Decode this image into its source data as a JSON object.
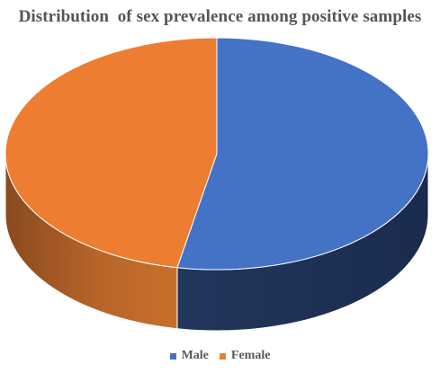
{
  "chart_data": {
    "type": "pie",
    "style": "3d",
    "title": "Distribution  of sex prevalence among positive samples",
    "categories": [
      "Male",
      "Female"
    ],
    "values": [
      53,
      47
    ],
    "colors": [
      "#4472C4",
      "#ED7D31"
    ],
    "legend_position": "bottom"
  }
}
